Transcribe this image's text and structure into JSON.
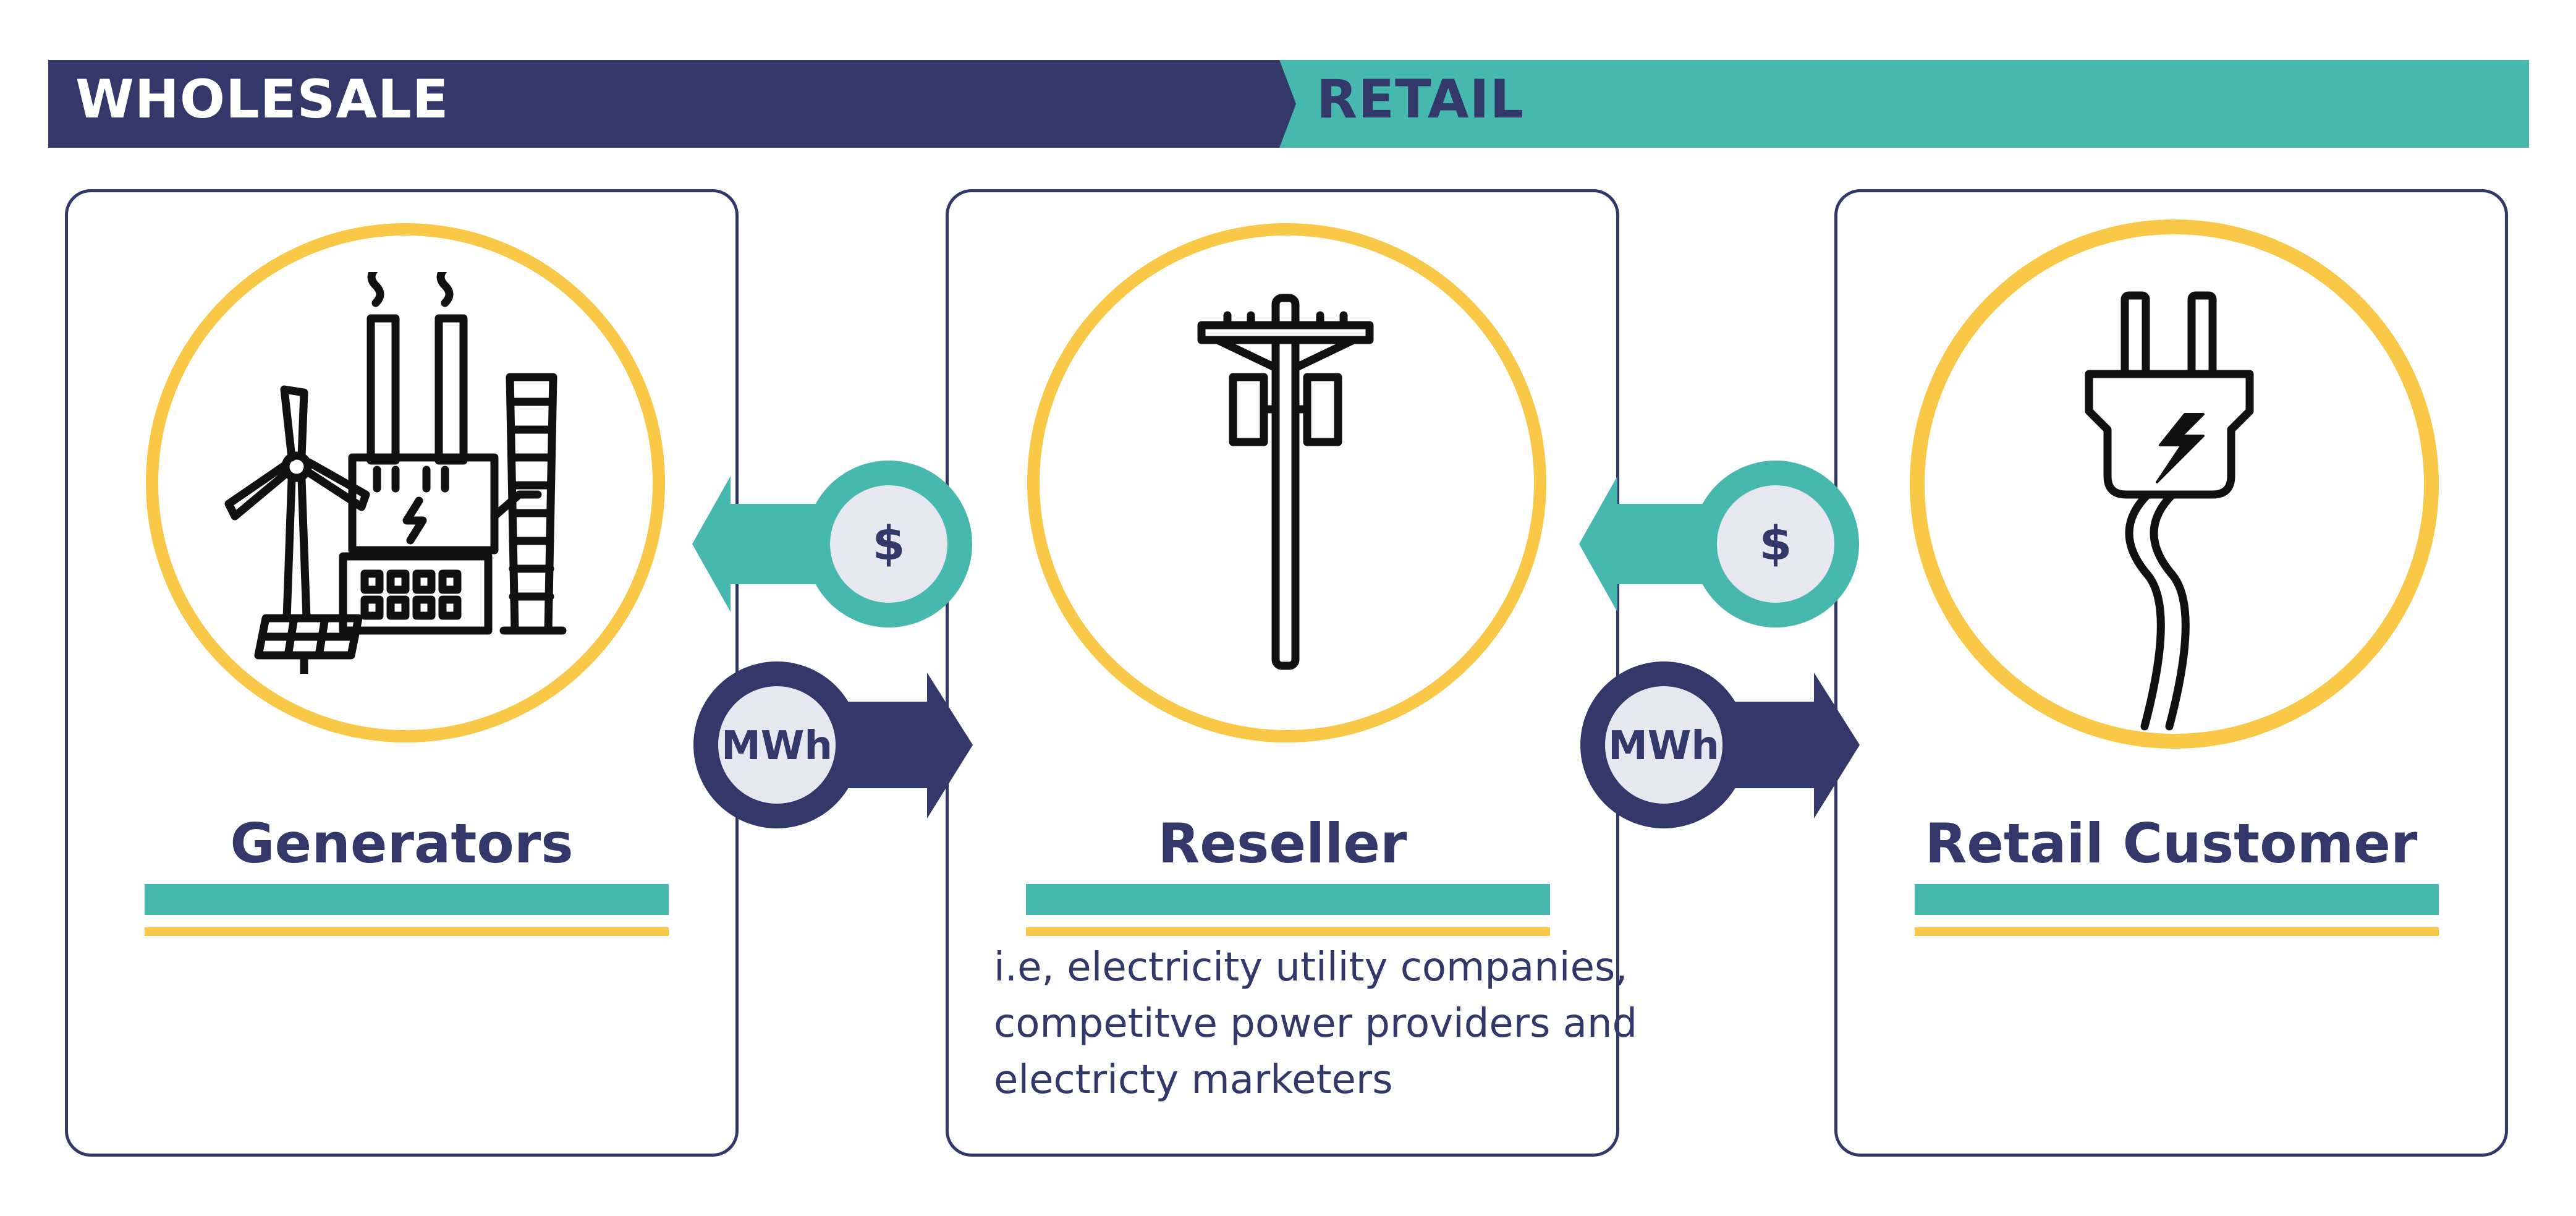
{
  "banner": {
    "left_label": "WHOLESALE",
    "right_label": "RETAIL",
    "colors": {
      "wholesale": "#323869",
      "retail": "#47b8ad"
    }
  },
  "stages": [
    {
      "title": "Generators",
      "icon": "power-plant-icon",
      "description_lines": []
    },
    {
      "title": "Reseller",
      "icon": "utility-pole-icon",
      "description_lines": [
        "i.e, electricity utility companies,",
        "competitve power providers and",
        "electricty marketers"
      ]
    },
    {
      "title": "Retail Customer",
      "icon": "electric-plug-icon",
      "description_lines": []
    }
  ],
  "flows": [
    {
      "money_label": "$",
      "energy_label": "MWh"
    },
    {
      "money_label": "$",
      "energy_label": "MWh"
    }
  ],
  "colors": {
    "navy": "#323869",
    "teal": "#47b8ad",
    "yellow": "#f8c846",
    "badge_fill": "#e6e7ef"
  }
}
